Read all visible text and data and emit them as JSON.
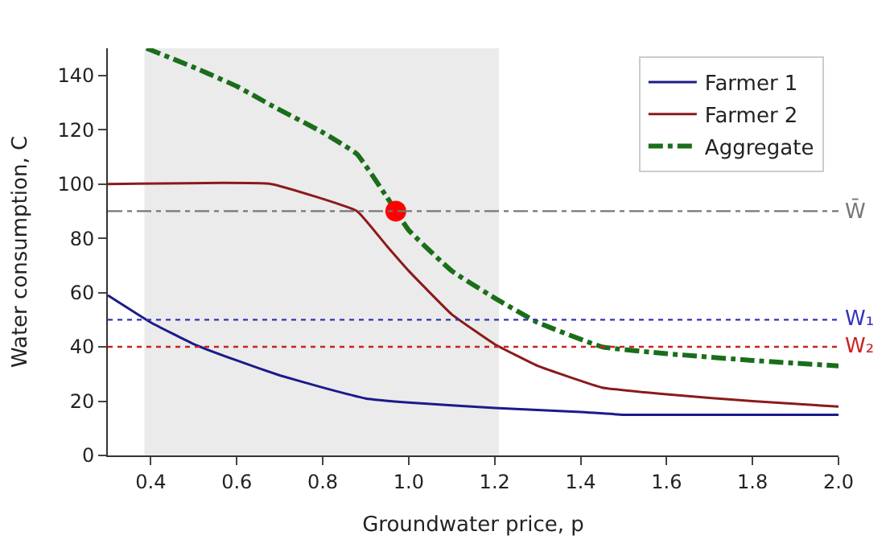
{
  "chart_data": {
    "type": "line",
    "xlabel": "Groundwater price, p",
    "ylabel": "Water consumption, C",
    "xlim": [
      0.3,
      2.0
    ],
    "xticks": [
      {
        "value": 0.4,
        "label": "0.4"
      },
      {
        "value": 0.6,
        "label": "0.6"
      },
      {
        "value": 0.8,
        "label": "0.8"
      },
      {
        "value": 1.0,
        "label": "1.0"
      },
      {
        "value": 1.2,
        "label": "1.2"
      },
      {
        "value": 1.4,
        "label": "1.4"
      },
      {
        "value": 1.6,
        "label": "1.6"
      },
      {
        "value": 1.8,
        "label": "1.8"
      },
      {
        "value": 2.0,
        "label": "2.0"
      }
    ],
    "ylim": [
      0,
      150
    ],
    "yticks": [
      0,
      20,
      40,
      60,
      80,
      100,
      120,
      140
    ],
    "grid": false,
    "legend": "top right",
    "series": [
      {
        "name": "Farmer 1",
        "color": "#1a1a8c",
        "line_style": "solid",
        "x": [
          0.3,
          0.4,
          0.5,
          0.6,
          0.7,
          0.8,
          0.9,
          1.0,
          1.2,
          1.4,
          1.5,
          2.0
        ],
        "values": [
          59,
          49,
          41,
          35,
          29.5,
          25,
          21,
          19.5,
          17.5,
          16,
          15,
          15
        ]
      },
      {
        "name": "Farmer 2",
        "color": "#8b1a1a",
        "line_style": "solid",
        "x": [
          0.3,
          0.68,
          0.88,
          0.95,
          1.0,
          1.1,
          1.2,
          1.3,
          1.45,
          1.6,
          1.8,
          2.0
        ],
        "values": [
          100,
          100,
          90,
          77,
          68,
          52,
          41,
          33,
          25,
          22.5,
          20,
          18
        ]
      },
      {
        "name": "Aggregate",
        "color": "#1a6e1a",
        "line_style": "dashdot",
        "x": [
          0.39,
          0.5,
          0.6,
          0.68,
          0.8,
          0.88,
          0.95,
          1.0,
          1.1,
          1.2,
          1.3,
          1.45,
          1.6,
          1.8,
          2.0
        ],
        "values": [
          150,
          143,
          136,
          129,
          119,
          111,
          95,
          83,
          68,
          58,
          49,
          40,
          37.5,
          35,
          33
        ]
      },
      {
        "type": "scatter",
        "marker": "circle",
        "color": "#ff0000",
        "x": [
          0.97
        ],
        "values": [
          90
        ]
      }
    ],
    "ref_lines": [
      {
        "axis": "y",
        "value": 90,
        "label": "W̄",
        "color": "#777777",
        "line_style": "dashdot"
      },
      {
        "axis": "y",
        "value": 50,
        "label": "W₁",
        "color": "#3333bb",
        "line_style": "dotted"
      },
      {
        "axis": "y",
        "value": 40,
        "label": "W₂",
        "color": "#cc2222",
        "line_style": "dotted"
      }
    ],
    "bands": [
      {
        "axis": "x",
        "from": 0.385,
        "to": 1.21,
        "color": "#ebebeb"
      }
    ]
  }
}
